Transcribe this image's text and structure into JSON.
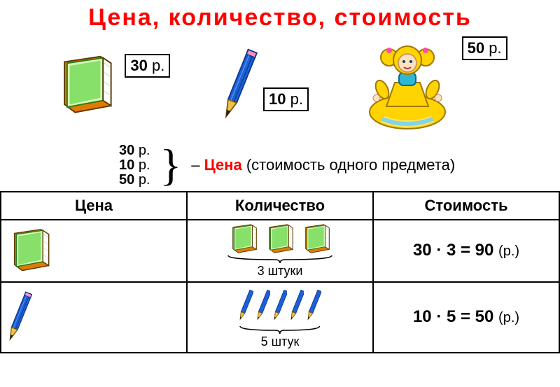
{
  "title": "Цена, количество, стоимость",
  "currency": "р.",
  "colors": {
    "accent_red": "#ff0000",
    "book_fill": "#86e06a",
    "book_fill_light": "#d6f7b8",
    "book_cover": "#e07a00",
    "pencil_body": "#1d5fd6",
    "pencil_tip": "#f3c04a",
    "doll_dress": "#ffd400",
    "doll_dress_accent": "#2fb7d6",
    "doll_hair": "#ffd400",
    "doll_skin": "#ffe0c0",
    "border": "#000000",
    "background": "#ffffff"
  },
  "hero": {
    "book": {
      "price": 30
    },
    "pencil": {
      "price": 10
    },
    "doll": {
      "price": 50
    }
  },
  "definition": {
    "prices": [
      30,
      10,
      50
    ],
    "dash": "–",
    "word": "Цена",
    "explain": "(стоимость одного предмета)"
  },
  "table": {
    "headers": {
      "price": "Цена",
      "qty": "Количество",
      "cost": "Стоимость"
    },
    "rows": [
      {
        "item": "book",
        "qty": 3,
        "qty_label": "3 штуки",
        "price": 30,
        "cost_expr": "30 · 3 = 90",
        "cost_unit": "(р.)"
      },
      {
        "item": "pencil",
        "qty": 5,
        "qty_label": "5 штук",
        "price": 10,
        "cost_expr": "10 · 5 = 50",
        "cost_unit": "(р.)"
      }
    ]
  }
}
